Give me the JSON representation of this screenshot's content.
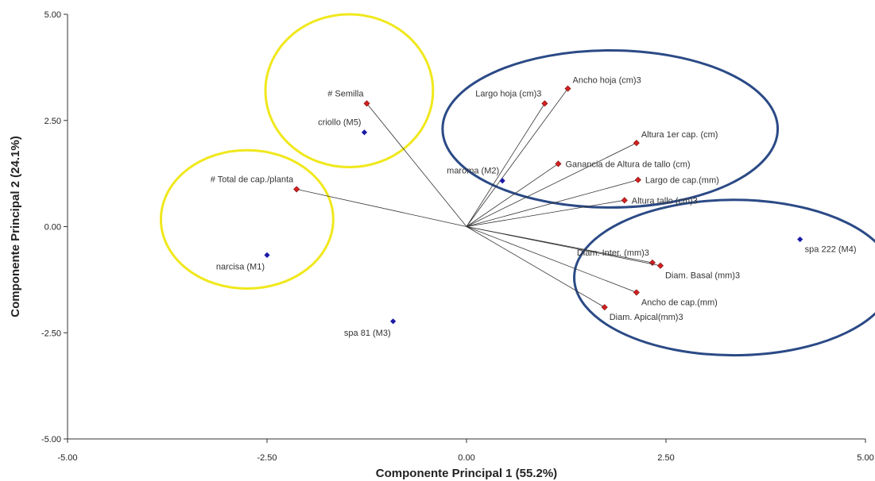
{
  "chart_data": {
    "type": "scatter",
    "subtype": "biplot",
    "xlabel": "Componente Principal 1 (55.2%)",
    "ylabel": "Componente Principal 2 (24.1%)",
    "xlim": [
      -5,
      5
    ],
    "ylim": [
      -5,
      5
    ],
    "x_ticks": [
      "-5.00",
      "-2.50",
      "0.00",
      "2.50",
      "5.00"
    ],
    "y_ticks": [
      "5.00",
      "2.50",
      "0.00",
      "-2.50",
      "-5.00"
    ],
    "x_tick_values": [
      -5,
      -2.5,
      0,
      2.5,
      5
    ],
    "y_tick_values": [
      5,
      2.5,
      0,
      -2.5,
      -5
    ],
    "grid": false,
    "observations": {
      "color": "#1a1aa6",
      "marker": "diamond",
      "points": [
        {
          "label": "narcisa (M1)",
          "x": -2.5,
          "y": -0.67,
          "label_pos": "below-left"
        },
        {
          "label": "maroma (M2)",
          "x": 0.45,
          "y": 1.08,
          "label_pos": "above-left"
        },
        {
          "label": "spa 81 (M3)",
          "x": -0.92,
          "y": -2.23,
          "label_pos": "below-left"
        },
        {
          "label": "spa 222 (M4)",
          "x": 4.18,
          "y": -0.3,
          "label_pos": "below-right"
        },
        {
          "label": "criollo (M5)",
          "x": -1.28,
          "y": 2.22,
          "label_pos": "above-left"
        }
      ]
    },
    "variables": {
      "color": "#d42020",
      "marker": "diamond",
      "vectors": [
        {
          "label": "# Semilla",
          "x": -1.25,
          "y": 2.9,
          "label_pos": "above-left"
        },
        {
          "label": "# Total de cap./planta",
          "x": -2.13,
          "y": 0.88,
          "label_pos": "above-left"
        },
        {
          "label": "Largo hoja (cm)3",
          "x": 0.98,
          "y": 2.9,
          "label_pos": "above-left"
        },
        {
          "label": "Ancho hoja (cm)3",
          "x": 1.27,
          "y": 3.25,
          "label_pos": "above-right"
        },
        {
          "label": "Altura 1er cap. (cm)",
          "x": 2.13,
          "y": 1.97,
          "label_pos": "above-right"
        },
        {
          "label": "Ganancia de Altura de tallo (cm)",
          "x": 1.15,
          "y": 1.48,
          "label_pos": "right"
        },
        {
          "label": "Largo de cap.(mm)",
          "x": 2.15,
          "y": 1.1,
          "label_pos": "right"
        },
        {
          "label": "Altura tallo (cm)3",
          "x": 1.98,
          "y": 0.62,
          "label_pos": "right"
        },
        {
          "label": "Diam. Inter. (mm)3",
          "x": 2.33,
          "y": -0.85,
          "label_pos": "above-left"
        },
        {
          "label": "Diam. Basal (mm)3",
          "x": 2.43,
          "y": -0.92,
          "label_pos": "below-right"
        },
        {
          "label": "Ancho de cap.(mm)",
          "x": 2.13,
          "y": -1.55,
          "label_pos": "below-right"
        },
        {
          "label": "Diam. Apical(mm)3",
          "x": 1.73,
          "y": -1.9,
          "label_pos": "below-right"
        }
      ]
    },
    "group_ellipses": [
      {
        "color": "#f0e81c",
        "cx": -1.47,
        "cy": 3.2,
        "rx": 1.05,
        "ry": 1.8
      },
      {
        "color": "#f0e81c",
        "cx": -2.75,
        "cy": 0.17,
        "rx": 1.08,
        "ry": 1.63
      },
      {
        "color": "#2b4a86",
        "cx": 1.8,
        "cy": 2.3,
        "rx": 2.1,
        "ry": 1.85
      },
      {
        "color": "#2b4a86",
        "cx": 3.35,
        "cy": -1.2,
        "rx": 2.0,
        "ry": 1.83
      }
    ]
  }
}
